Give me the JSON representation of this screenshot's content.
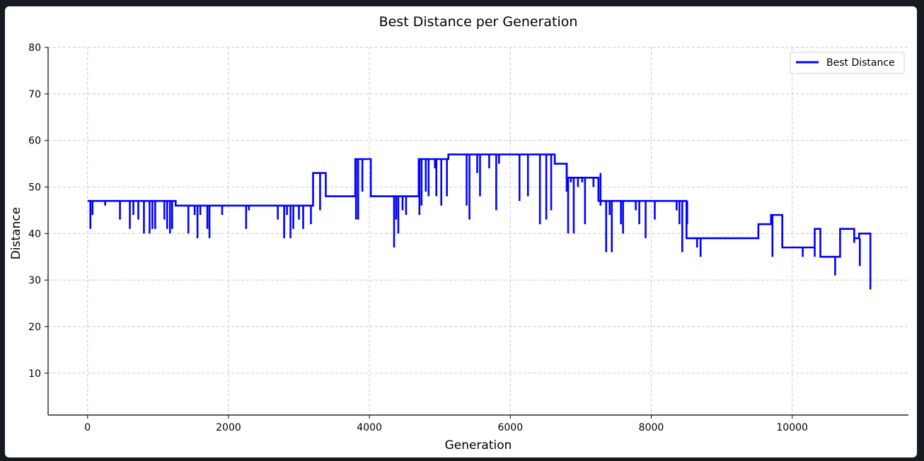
{
  "chart_data": {
    "type": "line",
    "title": "Best Distance per Generation",
    "xlabel": "Generation",
    "ylabel": "Distance",
    "xlim": [
      -560,
      11650
    ],
    "ylim": [
      1,
      80
    ],
    "xticks": [
      0,
      2000,
      4000,
      6000,
      8000,
      10000
    ],
    "yticks": [
      10,
      20,
      30,
      40,
      50,
      60,
      70,
      80
    ],
    "grid": true,
    "legend_position": "top-right",
    "color": "#0000ff",
    "series": [
      {
        "name": "Best Distance",
        "x": [
          0,
          1250,
          1250,
          3200,
          3200,
          3380,
          3380,
          3800,
          3800,
          4020,
          4020,
          4700,
          4700,
          5120,
          5120,
          6630,
          6630,
          6800,
          6800,
          7250,
          7250,
          8500,
          8500,
          9520,
          9520,
          9700,
          9700,
          9860,
          9860,
          10320,
          10320,
          10400,
          10400,
          10680,
          10680,
          10880,
          10880,
          10950,
          10950,
          11110,
          11110
        ],
        "y": [
          47,
          47,
          46,
          46,
          53,
          53,
          48,
          48,
          56,
          56,
          48,
          48,
          56,
          56,
          57,
          57,
          55,
          55,
          52,
          52,
          47,
          47,
          39,
          39,
          42,
          42,
          44,
          44,
          37,
          37,
          41,
          41,
          35,
          35,
          41,
          41,
          39,
          39,
          40,
          40,
          28
        ]
      }
    ],
    "dips": [
      [
        40,
        47,
        41
      ],
      [
        70,
        47,
        44
      ],
      [
        250,
        47,
        46
      ],
      [
        460,
        47,
        43
      ],
      [
        600,
        47,
        41
      ],
      [
        650,
        47,
        44
      ],
      [
        720,
        47,
        43
      ],
      [
        800,
        47,
        40
      ],
      [
        880,
        47,
        40
      ],
      [
        920,
        47,
        41
      ],
      [
        960,
        47,
        41
      ],
      [
        1090,
        47,
        43
      ],
      [
        1130,
        47,
        41
      ],
      [
        1170,
        47,
        40
      ],
      [
        1200,
        47,
        41
      ],
      [
        1430,
        46,
        40
      ],
      [
        1520,
        46,
        44
      ],
      [
        1560,
        46,
        39
      ],
      [
        1600,
        46,
        44
      ],
      [
        1700,
        46,
        41
      ],
      [
        1730,
        46,
        39
      ],
      [
        1910,
        46,
        44
      ],
      [
        2250,
        46,
        41
      ],
      [
        2290,
        46,
        45
      ],
      [
        2700,
        46,
        43
      ],
      [
        2790,
        46,
        39
      ],
      [
        2830,
        46,
        44
      ],
      [
        2880,
        46,
        39
      ],
      [
        2920,
        46,
        41
      ],
      [
        3000,
        46,
        43
      ],
      [
        3060,
        46,
        41
      ],
      [
        3170,
        46,
        42
      ],
      [
        3300,
        53,
        45
      ],
      [
        3810,
        56,
        43
      ],
      [
        3840,
        56,
        43
      ],
      [
        3900,
        56,
        49
      ],
      [
        4350,
        48,
        37
      ],
      [
        4380,
        48,
        43
      ],
      [
        4410,
        48,
        40
      ],
      [
        4470,
        48,
        45
      ],
      [
        4520,
        48,
        44
      ],
      [
        4710,
        56,
        44
      ],
      [
        4740,
        56,
        46
      ],
      [
        4800,
        56,
        49
      ],
      [
        4840,
        56,
        48
      ],
      [
        4930,
        56,
        54
      ],
      [
        4950,
        56,
        48
      ],
      [
        5020,
        56,
        46
      ],
      [
        5100,
        56,
        48
      ],
      [
        5380,
        57,
        46
      ],
      [
        5420,
        57,
        43
      ],
      [
        5530,
        57,
        53
      ],
      [
        5570,
        57,
        48
      ],
      [
        5700,
        57,
        54
      ],
      [
        5800,
        57,
        45
      ],
      [
        5840,
        57,
        55
      ],
      [
        6130,
        57,
        47
      ],
      [
        6250,
        57,
        48
      ],
      [
        6420,
        57,
        42
      ],
      [
        6510,
        57,
        43
      ],
      [
        6580,
        57,
        45
      ],
      [
        6800,
        55,
        49
      ],
      [
        6820,
        52,
        40
      ],
      [
        6860,
        52,
        51
      ],
      [
        6900,
        52,
        40
      ],
      [
        6960,
        52,
        50
      ],
      [
        7020,
        52,
        51
      ],
      [
        7060,
        52,
        42
      ],
      [
        7180,
        52,
        50
      ],
      [
        7280,
        53,
        46
      ],
      [
        7360,
        47,
        36
      ],
      [
        7410,
        47,
        44
      ],
      [
        7440,
        47,
        36
      ],
      [
        7570,
        47,
        42
      ],
      [
        7600,
        47,
        40
      ],
      [
        7780,
        47,
        45
      ],
      [
        7830,
        47,
        42
      ],
      [
        7920,
        47,
        39
      ],
      [
        8050,
        47,
        43
      ],
      [
        8360,
        47,
        45
      ],
      [
        8400,
        47,
        42
      ],
      [
        8440,
        47,
        36
      ],
      [
        8510,
        47,
        42
      ],
      [
        8650,
        39,
        37
      ],
      [
        8700,
        39,
        35
      ],
      [
        9720,
        44,
        35
      ],
      [
        10150,
        37,
        35
      ],
      [
        10320,
        37,
        35
      ],
      [
        10610,
        35,
        31
      ],
      [
        10880,
        41,
        38
      ],
      [
        10960,
        39,
        33
      ]
    ]
  }
}
